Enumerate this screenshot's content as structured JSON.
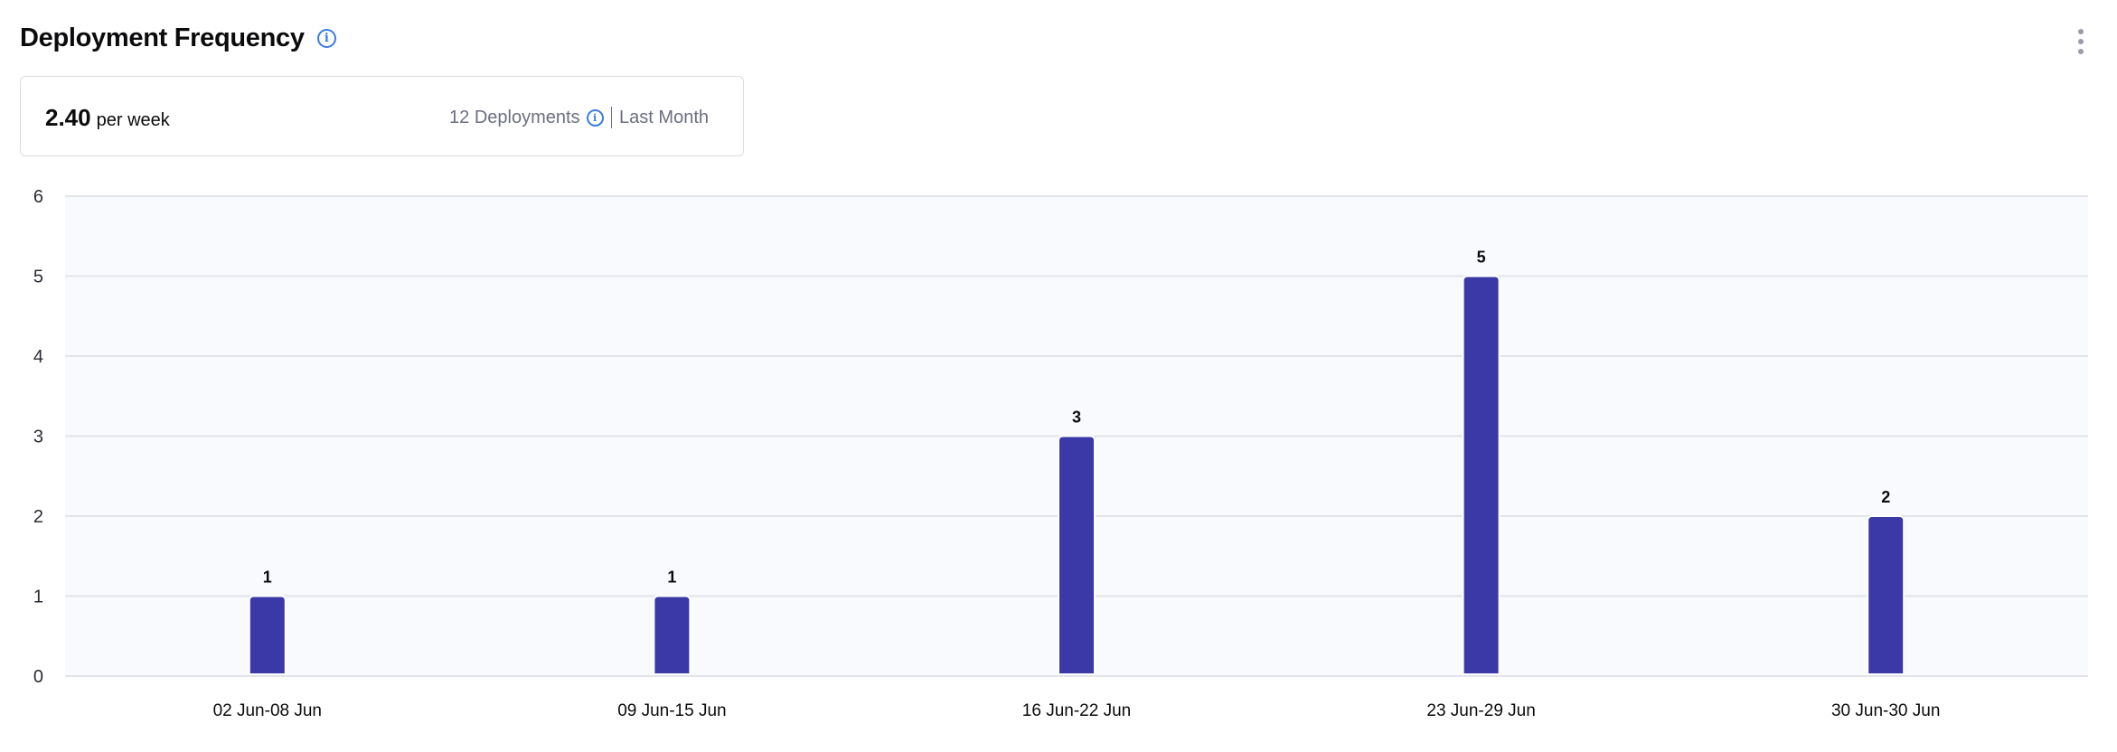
{
  "header": {
    "title": "Deployment Frequency",
    "info_icon": "info-icon",
    "menu_icon": "kebab-menu-icon"
  },
  "summary": {
    "value": "2.40",
    "unit": "per week",
    "deployments": "12 Deployments",
    "period": "Last Month"
  },
  "colors": {
    "bar": "#3b38a8",
    "plot_bg": "#f9fafd",
    "grid": "#e3e4ea",
    "info": "#3b7be0"
  },
  "chart_data": {
    "type": "bar",
    "title": "",
    "xlabel": "",
    "ylabel": "",
    "categories": [
      "02 Jun-08 Jun",
      "09 Jun-15 Jun",
      "16 Jun-22 Jun",
      "23 Jun-29 Jun",
      "30 Jun-30 Jun"
    ],
    "values": [
      1,
      1,
      3,
      5,
      2
    ],
    "ylim": [
      0,
      6
    ],
    "yticks": [
      "0",
      "1",
      "2",
      "3",
      "4",
      "5",
      "6"
    ],
    "grid": true,
    "data_labels": true
  }
}
